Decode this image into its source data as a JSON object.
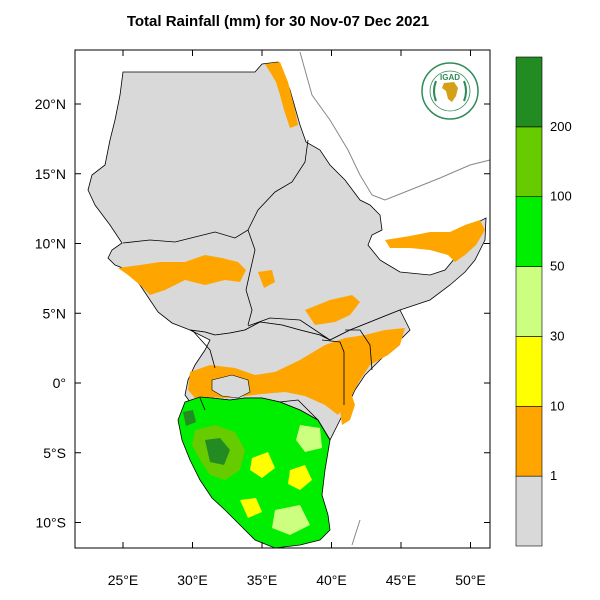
{
  "title": "Total Rainfall (mm) for 30 Nov-07 Dec 2021",
  "x_ticks": [
    {
      "lon": 25,
      "label": "25°E"
    },
    {
      "lon": 30,
      "label": "30°E"
    },
    {
      "lon": 35,
      "label": "35°E"
    },
    {
      "lon": 40,
      "label": "40°E"
    },
    {
      "lon": 45,
      "label": "45°E"
    },
    {
      "lon": 50,
      "label": "50°E"
    }
  ],
  "y_ticks": [
    {
      "lat": 20,
      "label": "20°N"
    },
    {
      "lat": 15,
      "label": "15°N"
    },
    {
      "lat": 10,
      "label": "10°N"
    },
    {
      "lat": 5,
      "label": "5°N"
    },
    {
      "lat": 0,
      "label": "0°"
    },
    {
      "lat": -5,
      "label": "5°S"
    },
    {
      "lat": -10,
      "label": "10°S"
    }
  ],
  "colorbar": {
    "bins": [
      {
        "color": "#d9d9d9",
        "label": "1"
      },
      {
        "color": "#ffa500",
        "label": "10"
      },
      {
        "color": "#ffff00",
        "label": "30"
      },
      {
        "color": "#ccff80",
        "label": "50"
      },
      {
        "color": "#00ee00",
        "label": "100"
      },
      {
        "color": "#66cc00",
        "label": "200"
      },
      {
        "color": "#228b22",
        "label": ""
      }
    ]
  },
  "logo": {
    "text": "IGAD"
  },
  "colors": {
    "land": "#d9d9d9",
    "border": "#000000",
    "coast_outside": "#888888"
  }
}
